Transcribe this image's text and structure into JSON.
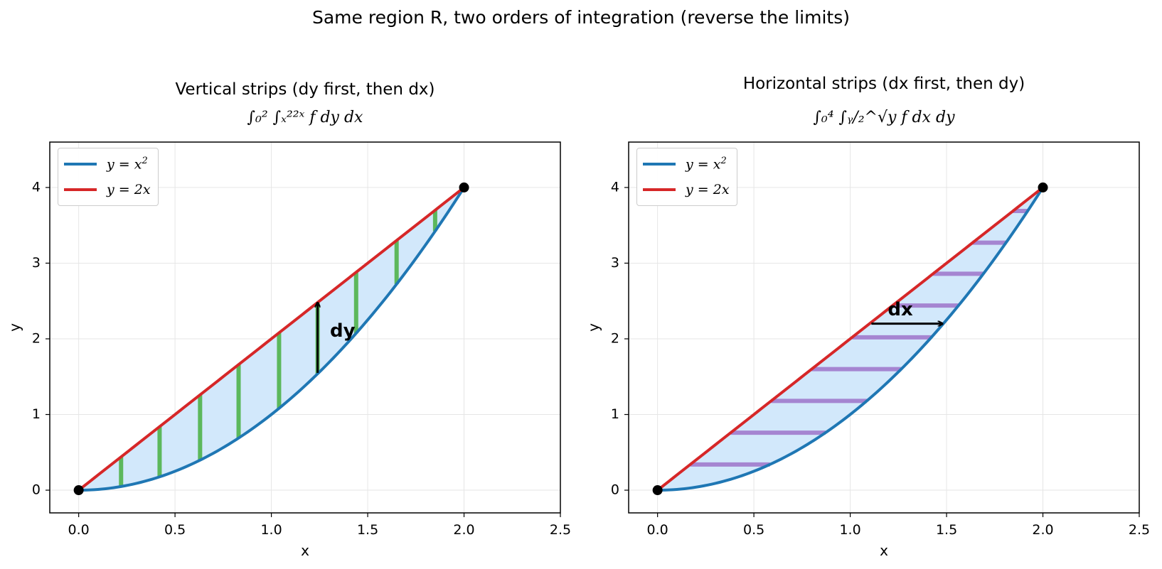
{
  "suptitle": "Same region R, two orders of integration (reverse the limits)",
  "colors": {
    "parabola": "#1f77b4",
    "line": "#d62728",
    "region_fill": "#d2e8fb",
    "vertical_strip": "#5cb85c",
    "horizontal_strip": "#a585d1",
    "grid": "#e6e6e6"
  },
  "chart_data": [
    {
      "type": "line",
      "title": "Vertical strips  (dy first, then dx)",
      "formula": "∫₀² ∫ₓ²²ˣ f dy dx",
      "xlabel": "x",
      "ylabel": "y",
      "xlim": [
        -0.15,
        2.5
      ],
      "ylim": [
        -0.3,
        4.6
      ],
      "xticks": [
        0.0,
        0.5,
        1.0,
        1.5,
        2.0,
        2.5
      ],
      "xtick_labels": [
        "0.0",
        "0.5",
        "1.0",
        "1.5",
        "2.0",
        "2.5"
      ],
      "yticks": [
        0,
        1,
        2,
        3,
        4
      ],
      "ytick_labels": [
        "0",
        "1",
        "2",
        "3",
        "4"
      ],
      "grid": true,
      "legend_position": "top-left",
      "series": [
        {
          "name": "y = x²",
          "label_base": "y = x",
          "label_sup": "2",
          "function": "x^2",
          "color": "#1f77b4"
        },
        {
          "name": "y = 2x",
          "label_base": "y = 2x",
          "label_sup": "",
          "function": "2x",
          "color": "#d62728"
        }
      ],
      "points": [
        {
          "x": 0,
          "y": 0
        },
        {
          "x": 2,
          "y": 4
        }
      ],
      "strip_orientation": "vertical",
      "strips": [
        0.22,
        0.42,
        0.63,
        0.83,
        1.04,
        1.24,
        1.44,
        1.65,
        1.85
      ],
      "arrow": {
        "x0": 1.24,
        "y0": 1.55,
        "x1": 1.24,
        "y1": 2.48,
        "label": "dy",
        "label_x": 1.37,
        "label_y": 2.1
      }
    },
    {
      "type": "line",
      "title": "Horizontal strips  (dx first, then dy)",
      "formula": "∫₀⁴ ∫ᵧ/₂^√y f dx dy",
      "xlabel": "x",
      "ylabel": "y",
      "xlim": [
        -0.15,
        2.5
      ],
      "ylim": [
        -0.3,
        4.6
      ],
      "xticks": [
        0.0,
        0.5,
        1.0,
        1.5,
        2.0,
        2.5
      ],
      "xtick_labels": [
        "0.0",
        "0.5",
        "1.0",
        "1.5",
        "2.0",
        "2.5"
      ],
      "yticks": [
        0,
        1,
        2,
        3,
        4
      ],
      "ytick_labels": [
        "0",
        "1",
        "2",
        "3",
        "4"
      ],
      "grid": true,
      "legend_position": "top-left",
      "series": [
        {
          "name": "y = x²",
          "label_base": "y = x",
          "label_sup": "2",
          "function": "x^2",
          "color": "#1f77b4"
        },
        {
          "name": "y = 2x",
          "label_base": "y = 2x",
          "label_sup": "",
          "function": "2x",
          "color": "#d62728"
        }
      ],
      "points": [
        {
          "x": 0,
          "y": 0
        },
        {
          "x": 2,
          "y": 4
        }
      ],
      "strip_orientation": "horizontal",
      "strips": [
        0.34,
        0.76,
        1.18,
        1.6,
        2.02,
        2.44,
        2.86,
        3.27,
        3.69
      ],
      "arrow": {
        "x0": 1.11,
        "y0": 2.2,
        "x1": 1.48,
        "y1": 2.2,
        "label": "dx",
        "label_x": 1.26,
        "label_y": 2.38
      }
    }
  ]
}
